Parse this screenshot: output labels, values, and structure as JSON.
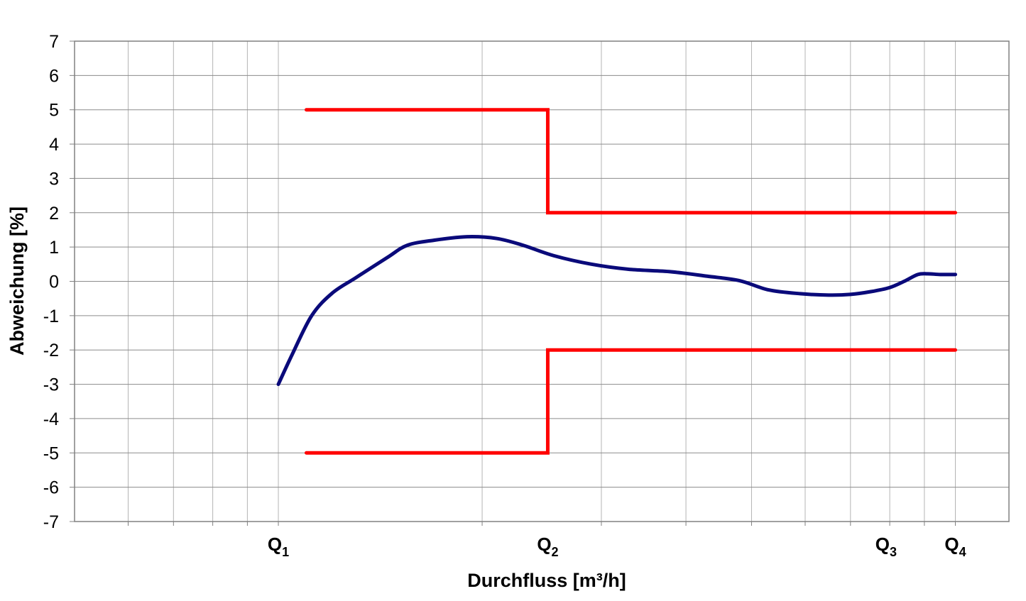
{
  "chart_data": {
    "type": "line",
    "title": "",
    "xlabel": "Durchfluss [m³/h]",
    "ylabel": "Abweichung [%]",
    "x_scale": "log",
    "xlim": [
      0.5,
      12
    ],
    "ylim": [
      -7,
      7
    ],
    "yticks": [
      7,
      6,
      5,
      4,
      3,
      2,
      1,
      0,
      -1,
      -2,
      -3,
      -4,
      -5,
      -6,
      -7
    ],
    "xticks": [
      {
        "base": "Q",
        "sub": "1",
        "x": 1
      },
      {
        "base": "Q",
        "sub": "2",
        "x": 2.5
      },
      {
        "base": "Q",
        "sub": "3",
        "x": 7.9
      },
      {
        "base": "Q",
        "sub": "4",
        "x": 10
      }
    ],
    "grid": true,
    "legend": "none",
    "series": [
      {
        "role": "upper-limit",
        "color": "#ff0000",
        "points": [
          [
            1.1,
            5
          ],
          [
            2.5,
            5
          ],
          [
            2.5,
            2
          ],
          [
            10,
            2
          ]
        ]
      },
      {
        "role": "lower-limit",
        "color": "#ff0000",
        "points": [
          [
            1.1,
            -5
          ],
          [
            2.5,
            -5
          ],
          [
            2.5,
            -2
          ],
          [
            10,
            -2
          ]
        ]
      },
      {
        "role": "deviation-curve",
        "color": "#0a0a7a",
        "points": [
          [
            1.0,
            -3.0
          ],
          [
            1.05,
            -2.1
          ],
          [
            1.12,
            -1.0
          ],
          [
            1.2,
            -0.35
          ],
          [
            1.3,
            0.1
          ],
          [
            1.45,
            0.7
          ],
          [
            1.55,
            1.05
          ],
          [
            1.7,
            1.2
          ],
          [
            1.9,
            1.3
          ],
          [
            2.1,
            1.25
          ],
          [
            2.3,
            1.05
          ],
          [
            2.55,
            0.75
          ],
          [
            2.9,
            0.5
          ],
          [
            3.3,
            0.35
          ],
          [
            3.8,
            0.28
          ],
          [
            4.3,
            0.15
          ],
          [
            4.8,
            0.02
          ],
          [
            5.3,
            -0.25
          ],
          [
            5.9,
            -0.36
          ],
          [
            6.5,
            -0.4
          ],
          [
            7.0,
            -0.38
          ],
          [
            7.5,
            -0.3
          ],
          [
            8.0,
            -0.18
          ],
          [
            8.4,
            0.0
          ],
          [
            8.8,
            0.2
          ],
          [
            9.1,
            0.22
          ],
          [
            9.5,
            0.2
          ],
          [
            10.0,
            0.2
          ]
        ]
      }
    ]
  }
}
